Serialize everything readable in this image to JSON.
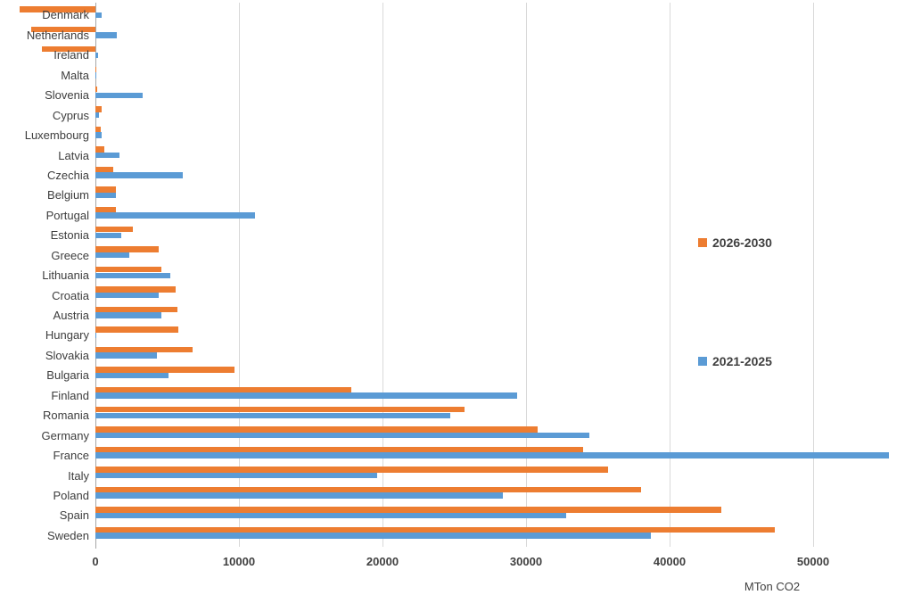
{
  "chart_data": {
    "type": "bar",
    "orientation": "horizontal",
    "title": "",
    "xlabel": "MTon CO2",
    "ylabel": "",
    "categories": [
      "Denmark",
      "Netherlands",
      "Ireland",
      "Malta",
      "Slovenia",
      "Cyprus",
      "Luxembourg",
      "Latvia",
      "Czechia",
      "Belgium",
      "Portugal",
      "Estonia",
      "Greece",
      "Lithuania",
      "Croatia",
      "Austria",
      "Hungary",
      "Slovakia",
      "Bulgaria",
      "Finland",
      "Romania",
      "Germany",
      "France",
      "Italy",
      "Poland",
      "Spain",
      "Sweden"
    ],
    "series": [
      {
        "name": "2026-2030",
        "color": "#ED7D31",
        "values": [
          -5300,
          -4450,
          -3700,
          40,
          120,
          440,
          370,
          650,
          1270,
          1400,
          1400,
          2600,
          4400,
          4600,
          5600,
          5700,
          5800,
          6800,
          9700,
          17800,
          25700,
          30800,
          34000,
          35700,
          38000,
          43600,
          47300
        ]
      },
      {
        "name": "2021-2025",
        "color": "#5B9BD5",
        "values": [
          450,
          1500,
          200,
          80,
          3300,
          250,
          460,
          1700,
          6100,
          1400,
          11100,
          1800,
          2350,
          5200,
          4400,
          4600,
          50,
          4300,
          5100,
          29400,
          24700,
          34400,
          55300,
          19600,
          28400,
          32800,
          38700
        ]
      }
    ],
    "x_ticks": [
      0,
      10000,
      20000,
      30000,
      40000,
      50000
    ],
    "x_tick_labels": [
      "0",
      "10000",
      "20000",
      "30000",
      "40000",
      "50000"
    ],
    "xlim": [
      -6600,
      57000
    ],
    "grid": true,
    "legend_position": "right",
    "gridline_color": "#D9D9D9",
    "zero_axis_color": "#A6A6A6"
  }
}
